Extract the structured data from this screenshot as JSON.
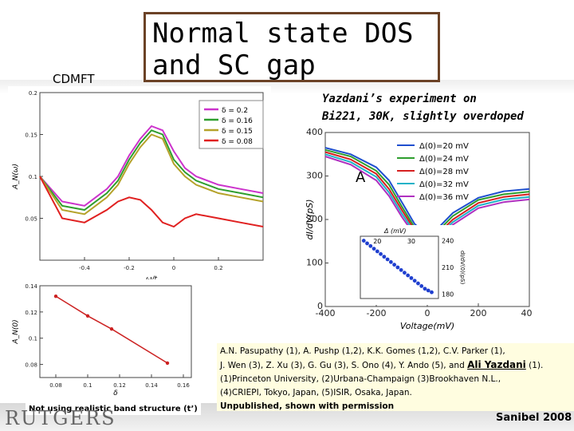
{
  "slide": {
    "label_cdmft": "CDMFT",
    "title": "Normal state DOS\nand SC gap",
    "experiment_title_line1": "Yazdani’s experiment on",
    "experiment_title_line2": "Bi221, 30K, slightly overdoped",
    "note": "Not using realistic band structure (t’)",
    "footer_logo": "RUTGERS",
    "footer_event": "Sanibel 2008",
    "colors": {
      "title_border": "#6b4226",
      "refs_bg": "#fffde0"
    }
  },
  "references": {
    "line1": "A.N. Pasupathy (1), A. Pushp (1,2), K.K. Gomes (1,2), C.V. Parker (1),",
    "line2_prefix": "J. Wen (3), Z. Xu (3), G. Gu (3), S. Ono (4), Y. Ando (5), and ",
    "line2_highlight": "Ali Yazdani",
    "line2_suffix": " (1).",
    "line3": "(1)Princeton University, (2)Urbana-Champaign (3)Brookhaven N.L.,",
    "line4": "(4)CRIEPI, Tokyo, Japan, (5)ISIR, Osaka, Japan.",
    "line5": "Unpublished, shown with permission"
  },
  "chart_data": [
    {
      "type": "line",
      "id": "cdmft-dos",
      "xlabel": "ω/t",
      "ylabel": "A_N(ω)",
      "xlim": [
        -0.6,
        0.4
      ],
      "ylim": [
        0,
        0.2
      ],
      "xticks": [
        -0.4,
        -0.2,
        0,
        0.2
      ],
      "yticks": [
        0.05,
        0.1,
        0.15,
        0.2
      ],
      "legend": [
        "δ = 0.2",
        "δ = 0.16",
        "δ = 0.15",
        "δ = 0.08"
      ],
      "series": [
        {
          "name": "δ = 0.2",
          "color": "#cc33cc",
          "x": [
            -0.6,
            -0.5,
            -0.4,
            -0.3,
            -0.25,
            -0.2,
            -0.15,
            -0.1,
            -0.05,
            0,
            0.05,
            0.1,
            0.2,
            0.3,
            0.4
          ],
          "y": [
            0.1,
            0.07,
            0.065,
            0.085,
            0.1,
            0.125,
            0.145,
            0.16,
            0.155,
            0.13,
            0.11,
            0.1,
            0.09,
            0.085,
            0.08
          ]
        },
        {
          "name": "δ = 0.16",
          "color": "#2e9e2e",
          "x": [
            -0.6,
            -0.5,
            -0.4,
            -0.3,
            -0.25,
            -0.2,
            -0.15,
            -0.1,
            -0.05,
            0,
            0.05,
            0.1,
            0.2,
            0.3,
            0.4
          ],
          "y": [
            0.1,
            0.065,
            0.06,
            0.08,
            0.095,
            0.12,
            0.14,
            0.155,
            0.15,
            0.12,
            0.105,
            0.095,
            0.085,
            0.08,
            0.075
          ]
        },
        {
          "name": "δ = 0.15",
          "color": "#b5a22a",
          "x": [
            -0.6,
            -0.5,
            -0.4,
            -0.3,
            -0.25,
            -0.2,
            -0.15,
            -0.1,
            -0.05,
            0,
            0.05,
            0.1,
            0.2,
            0.3,
            0.4
          ],
          "y": [
            0.1,
            0.06,
            0.055,
            0.075,
            0.09,
            0.115,
            0.135,
            0.15,
            0.145,
            0.115,
            0.1,
            0.09,
            0.08,
            0.075,
            0.07
          ]
        },
        {
          "name": "δ = 0.08",
          "color": "#e02020",
          "x": [
            -0.6,
            -0.5,
            -0.4,
            -0.3,
            -0.25,
            -0.2,
            -0.15,
            -0.1,
            -0.05,
            0,
            0.05,
            0.1,
            0.2,
            0.3,
            0.4
          ],
          "y": [
            0.1,
            0.05,
            0.045,
            0.06,
            0.07,
            0.075,
            0.072,
            0.06,
            0.045,
            0.04,
            0.05,
            0.055,
            0.05,
            0.045,
            0.04
          ]
        }
      ]
    },
    {
      "type": "line",
      "id": "cdmft-a0-vs-delta",
      "xlabel": "δ",
      "ylabel": "A_N(0)",
      "xlim": [
        0.07,
        0.165
      ],
      "ylim": [
        0.07,
        0.14
      ],
      "xticks": [
        0.08,
        0.1,
        0.12,
        0.14,
        0.16
      ],
      "yticks": [
        0.08,
        0.1,
        0.12,
        0.14
      ],
      "series": [
        {
          "name": "A_N(0)",
          "color": "#cc2222",
          "x": [
            0.08,
            0.1,
            0.115,
            0.15
          ],
          "y": [
            0.132,
            0.117,
            0.107,
            0.081
          ]
        }
      ]
    },
    {
      "type": "line",
      "id": "stm-spectra",
      "xlabel": "Voltage(mV)",
      "ylabel": "dI/dV(pS)",
      "panel_label": "A",
      "xlim": [
        -400,
        400
      ],
      "ylim": [
        0,
        400
      ],
      "xticks": [
        -400,
        -200,
        0,
        200,
        400
      ],
      "yticks": [
        0,
        100,
        200,
        300,
        400
      ],
      "legend": [
        "Δ(0)=20 mV",
        "Δ(0)=24 mV",
        "Δ(0)=28 mV",
        "Δ(0)=32 mV",
        "Δ(0)=36 mV"
      ],
      "series": [
        {
          "name": "Δ(0)=20 mV",
          "color": "#1f4fcf",
          "x": [
            -400,
            -300,
            -200,
            -150,
            -100,
            -50,
            0,
            50,
            100,
            200,
            300,
            400
          ],
          "y": [
            365,
            350,
            320,
            290,
            240,
            190,
            165,
            185,
            215,
            250,
            265,
            270
          ]
        },
        {
          "name": "Δ(0)=24 mV",
          "color": "#2e9e2e",
          "x": [
            -400,
            -300,
            -200,
            -150,
            -100,
            -50,
            0,
            50,
            100,
            200,
            300,
            400
          ],
          "y": [
            360,
            345,
            312,
            280,
            230,
            182,
            160,
            178,
            208,
            245,
            258,
            264
          ]
        },
        {
          "name": "Δ(0)=28 mV",
          "color": "#d62020",
          "x": [
            -400,
            -300,
            -200,
            -150,
            -100,
            -50,
            0,
            50,
            100,
            200,
            300,
            400
          ],
          "y": [
            355,
            338,
            305,
            270,
            222,
            176,
            155,
            172,
            200,
            238,
            252,
            258
          ]
        },
        {
          "name": "Δ(0)=32 mV",
          "color": "#20b2c8",
          "x": [
            -400,
            -300,
            -200,
            -150,
            -100,
            -50,
            0,
            50,
            100,
            200,
            300,
            400
          ],
          "y": [
            350,
            332,
            298,
            262,
            214,
            170,
            150,
            166,
            194,
            232,
            246,
            252
          ]
        },
        {
          "name": "Δ(0)=36 mV",
          "color": "#b030c0",
          "x": [
            -400,
            -300,
            -200,
            -150,
            -100,
            -50,
            0,
            50,
            100,
            200,
            300,
            400
          ],
          "y": [
            345,
            326,
            290,
            254,
            206,
            164,
            145,
            160,
            188,
            226,
            240,
            246
          ]
        }
      ]
    },
    {
      "type": "scatter",
      "id": "stm-inset",
      "xlabel": "Δ (mV)",
      "ylabel": "dI/dV(0)(pS)",
      "xlim": [
        15,
        38
      ],
      "ylim": [
        175,
        245
      ],
      "xticks": [
        20,
        30
      ],
      "yticks": [
        180,
        210,
        240
      ],
      "series": [
        {
          "name": "inset",
          "color": "#1f3fcf",
          "x": [
            16,
            17,
            18,
            19,
            20,
            21,
            22,
            23,
            24,
            25,
            26,
            27,
            28,
            29,
            30,
            31,
            32,
            33,
            34,
            35,
            36
          ],
          "y": [
            240,
            237,
            234,
            231,
            228,
            225,
            222,
            219,
            216,
            213,
            210,
            207,
            204,
            201,
            198,
            195,
            192,
            189,
            186,
            184,
            182
          ]
        }
      ]
    }
  ]
}
